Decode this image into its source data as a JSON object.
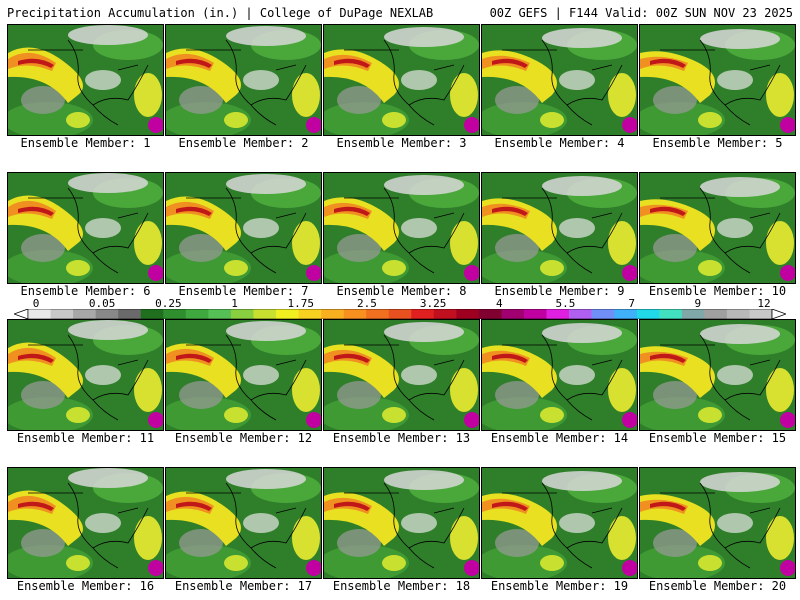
{
  "header": {
    "left": "Precipitation Accumulation (in.) | College of DuPage NEXLAB",
    "right": "00Z GEFS | F144 Valid: 00Z SUN NOV 23 2025"
  },
  "panels": [
    {
      "label": "Ensemble Member: 1"
    },
    {
      "label": "Ensemble Member: 2"
    },
    {
      "label": "Ensemble Member: 3"
    },
    {
      "label": "Ensemble Member: 4"
    },
    {
      "label": "Ensemble Member: 5"
    },
    {
      "label": "Ensemble Member: 6"
    },
    {
      "label": "Ensemble Member: 7"
    },
    {
      "label": "Ensemble Member: 8"
    },
    {
      "label": "Ensemble Member: 9"
    },
    {
      "label": "Ensemble Member: 10"
    },
    {
      "label": "Ensemble Member: 11"
    },
    {
      "label": "Ensemble Member: 12"
    },
    {
      "label": "Ensemble Member: 13"
    },
    {
      "label": "Ensemble Member: 14"
    },
    {
      "label": "Ensemble Member: 15"
    },
    {
      "label": "Ensemble Member: 16"
    },
    {
      "label": "Ensemble Member: 17"
    },
    {
      "label": "Ensemble Member: 18"
    },
    {
      "label": "Ensemble Member: 19"
    },
    {
      "label": "Ensemble Member: 20"
    }
  ],
  "colorbar": {
    "tick_labels": [
      "0",
      "0.05",
      "0.25",
      "1",
      "1.75",
      "2.5",
      "3.25",
      "4",
      "5.5",
      "7",
      "9",
      "12"
    ],
    "colors": [
      "#e8e8e8",
      "#c8c8c8",
      "#a8a8a8",
      "#888888",
      "#6a6a6a",
      "#1f6f1f",
      "#2f8f2f",
      "#3fa83f",
      "#55c055",
      "#88d040",
      "#c8e030",
      "#f0f020",
      "#f8d020",
      "#f8b020",
      "#f89020",
      "#f07020",
      "#e85020",
      "#e02020",
      "#c01020",
      "#a00020",
      "#800030",
      "#a00070",
      "#c000a0",
      "#e020e0",
      "#b060f0",
      "#7090f8",
      "#40b0f8",
      "#20d8e8",
      "#40e0c0",
      "#80a8a8",
      "#a0a0a0",
      "#b8b8b8",
      "#c8c8c8"
    ]
  }
}
